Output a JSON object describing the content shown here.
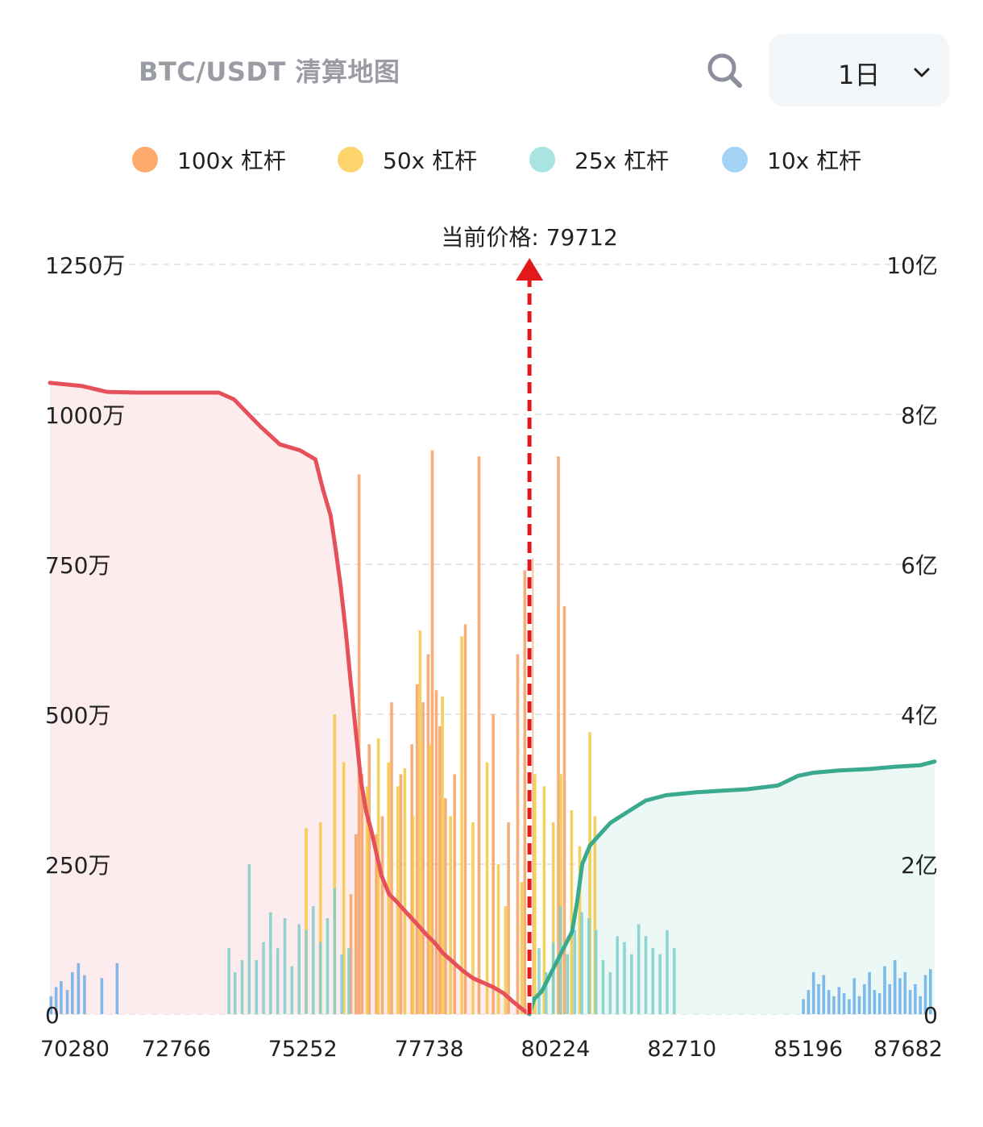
{
  "header": {
    "title": "BTC/USDT 清算地图",
    "timeframe": "1日",
    "search_icon": "search-icon",
    "dropdown_icon": "chevron-down-icon"
  },
  "legend": [
    {
      "label": "100x 杠杆",
      "color": "#fdab6c"
    },
    {
      "label": "50x 杠杆",
      "color": "#fdd36b"
    },
    {
      "label": "25x 杠杆",
      "color": "#a9e4e2"
    },
    {
      "label": "10x 杠杆",
      "color": "#a5d3f5"
    }
  ],
  "chart_data": {
    "type": "bar",
    "current_price_label": "当前价格: 79712",
    "current_price": 79712,
    "x_range": [
      70280,
      87682
    ],
    "x_ticks": [
      70280,
      72766,
      75252,
      77738,
      80224,
      82710,
      85196,
      87682
    ],
    "x_tick_labels": [
      "70280",
      "72766",
      "75252",
      "77738",
      "80224",
      "82710",
      "85196",
      "87682"
    ],
    "y_left_range": [
      0,
      12500000
    ],
    "y_left_ticks": [
      "0",
      "250万",
      "500万",
      "750万",
      "1000万",
      "1250万"
    ],
    "y_right_range": [
      0,
      1000000000
    ],
    "y_right_ticks": [
      "0",
      "2亿",
      "4亿",
      "6亿",
      "8亿",
      "10亿"
    ],
    "grid": true,
    "legend_position": "top",
    "bar_series": [
      {
        "name": "100x 杠杆",
        "leverage": 100,
        "color": "#f7a060",
        "x": [
          76200,
          76300,
          76360,
          76420,
          76560,
          76700,
          76820,
          77000,
          77180,
          77400,
          77500,
          77620,
          77720,
          77800,
          77880,
          77950,
          78060,
          78240,
          78450,
          78720,
          79000,
          79300,
          79480,
          79620,
          79760,
          80280,
          80400
        ],
        "values": [
          2000000,
          3000000,
          9000000,
          4000000,
          4500000,
          3000000,
          3300000,
          5200000,
          4000000,
          4500000,
          5500000,
          5200000,
          6000000,
          9400000,
          5400000,
          4800000,
          3600000,
          4000000,
          6500000,
          9300000,
          5000000,
          3200000,
          6000000,
          7400000,
          7600000,
          9300000,
          6800000
        ]
      },
      {
        "name": "50x 杠杆",
        "leverage": 50,
        "color": "#f5c842",
        "x": [
          75320,
          75600,
          75880,
          76060,
          76520,
          76740,
          76940,
          77120,
          77260,
          77420,
          77560,
          77760,
          78000,
          78160,
          78380,
          78600,
          78880,
          79100,
          79240,
          79560,
          79820,
          80000,
          80180,
          80330,
          80540,
          80700,
          80900,
          81000
        ],
        "values": [
          3100000,
          3200000,
          5000000,
          4200000,
          3800000,
          4600000,
          4200000,
          3800000,
          4100000,
          3300000,
          6400000,
          4500000,
          5300000,
          3300000,
          6300000,
          3200000,
          4200000,
          2500000,
          1800000,
          2200000,
          4000000,
          3800000,
          3200000,
          4000000,
          3400000,
          2800000,
          4700000,
          3300000
        ]
      },
      {
        "name": "25x 杠杆",
        "leverage": 25,
        "color": "#7fcfcb",
        "x": [
          73800,
          73920,
          74060,
          74200,
          74340,
          74480,
          74620,
          74760,
          74900,
          75040,
          75180,
          75320,
          75460,
          75600,
          75740,
          75880,
          76020,
          76160,
          79900,
          80040,
          80180,
          80320,
          80460,
          80600,
          80740,
          80880,
          81020,
          81160,
          81300,
          81440,
          81580,
          81720,
          81860,
          82000,
          82140,
          82280,
          82420,
          82560
        ],
        "values": [
          1100000,
          700000,
          900000,
          2500000,
          900000,
          1200000,
          1700000,
          1100000,
          1600000,
          800000,
          1500000,
          1400000,
          1800000,
          1200000,
          1600000,
          2100000,
          1000000,
          1100000,
          1100000,
          700000,
          1200000,
          1800000,
          1000000,
          1400000,
          1700000,
          1600000,
          1400000,
          900000,
          700000,
          1300000,
          1200000,
          1000000,
          1500000,
          1300000,
          1100000,
          1000000,
          1400000,
          1100000
        ]
      },
      {
        "name": "10x 杠杆",
        "leverage": 10,
        "color": "#6aaee6",
        "x": [
          70300,
          70400,
          70500,
          70620,
          70720,
          70840,
          70960,
          71300,
          71600,
          85100,
          85200,
          85300,
          85400,
          85500,
          85600,
          85700,
          85800,
          85900,
          86000,
          86100,
          86200,
          86300,
          86400,
          86500,
          86600,
          86700,
          86800,
          86900,
          87000,
          87100,
          87200,
          87300,
          87400,
          87500,
          87600
        ],
        "values": [
          300000,
          450000,
          550000,
          400000,
          700000,
          850000,
          650000,
          600000,
          850000,
          250000,
          400000,
          700000,
          500000,
          650000,
          400000,
          300000,
          450000,
          350000,
          250000,
          600000,
          300000,
          500000,
          700000,
          400000,
          350000,
          800000,
          500000,
          900000,
          600000,
          700000,
          400000,
          500000,
          300000,
          650000,
          750000
        ]
      }
    ],
    "cumulative_series": [
      {
        "name": "short",
        "color": "#e5505b",
        "fill": "#fdeced",
        "x": [
          70280,
          70900,
          71400,
          72000,
          72700,
          73600,
          73900,
          74400,
          74800,
          75200,
          75500,
          75650,
          75800,
          75900,
          76000,
          76100,
          76200,
          76300,
          76400,
          76500,
          76600,
          76700,
          76800,
          76950,
          77100,
          77300,
          77500,
          77700,
          77850,
          78000,
          78200,
          78400,
          78600,
          78800,
          79000,
          79200,
          79400,
          79600,
          79712
        ],
        "y": [
          842000000,
          838000000,
          830000000,
          829000000,
          829000000,
          829000000,
          820000000,
          785000000,
          760000000,
          752000000,
          740000000,
          700000000,
          665000000,
          620000000,
          570000000,
          510000000,
          440000000,
          375000000,
          310000000,
          270000000,
          245000000,
          215000000,
          185000000,
          160000000,
          150000000,
          135000000,
          120000000,
          105000000,
          95000000,
          82000000,
          70000000,
          58000000,
          48000000,
          42000000,
          36000000,
          28000000,
          16000000,
          5000000,
          0
        ]
      },
      {
        "name": "long",
        "color": "#3aaa8f",
        "fill": "#ecf8f5",
        "x": [
          79712,
          79800,
          79950,
          80100,
          80250,
          80400,
          80550,
          80650,
          80750,
          80900,
          81100,
          81300,
          81600,
          82000,
          82400,
          83000,
          84000,
          84600,
          85000,
          85300,
          85800,
          86400,
          86900,
          87400,
          87682
        ],
        "y": [
          0,
          20000000,
          30000000,
          50000000,
          70000000,
          90000000,
          110000000,
          150000000,
          200000000,
          225000000,
          240000000,
          255000000,
          268000000,
          285000000,
          292000000,
          296000000,
          300000000,
          305000000,
          318000000,
          322000000,
          325000000,
          327000000,
          330000000,
          332000000,
          337000000
        ]
      }
    ]
  }
}
